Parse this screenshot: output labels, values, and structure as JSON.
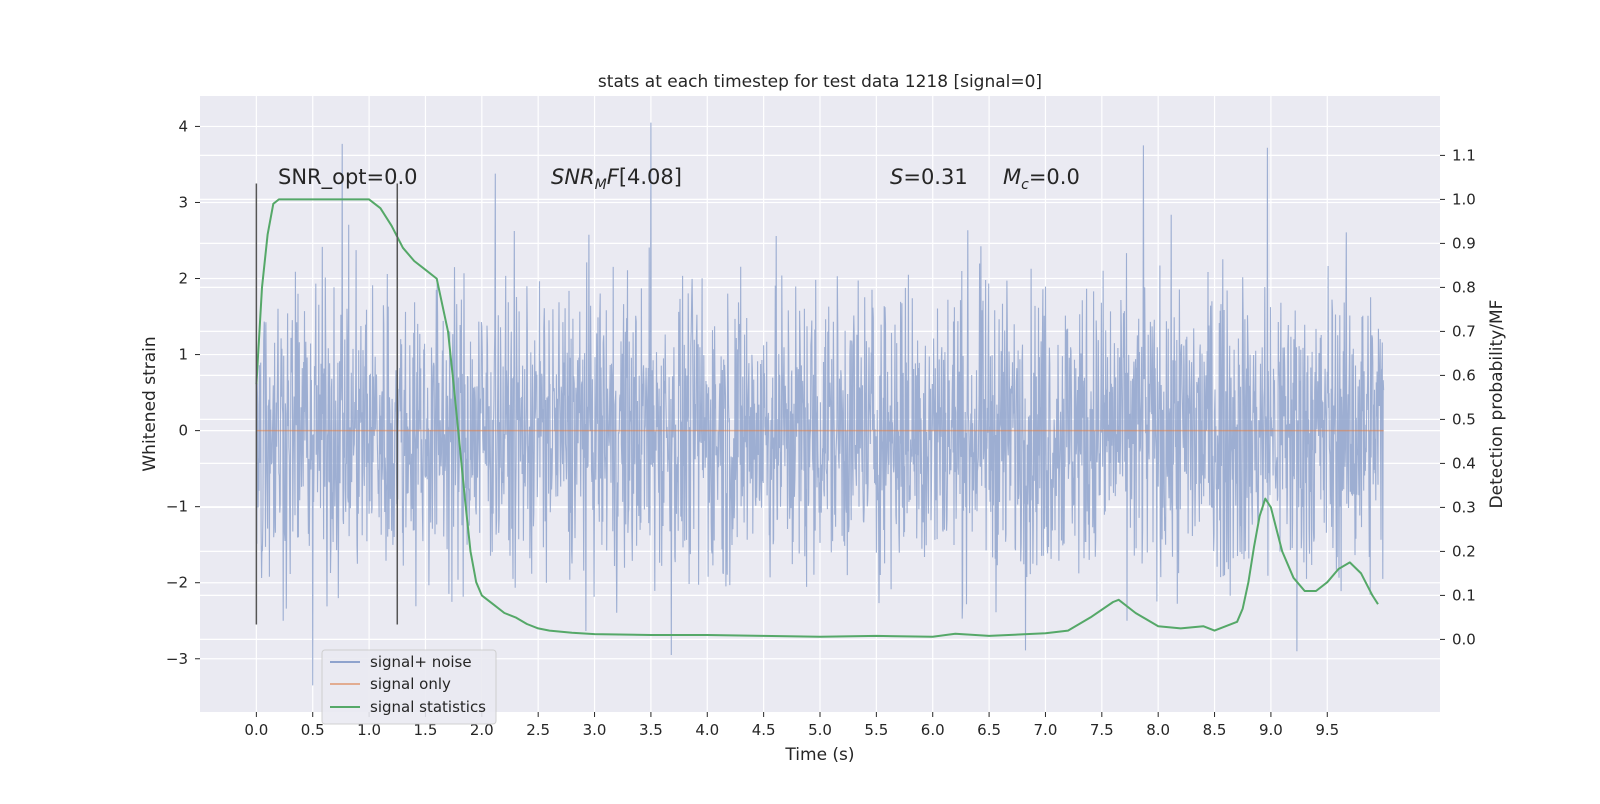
{
  "chart_data": {
    "type": "line",
    "title": "stats at each timestep for test data 1218 [signal=0]",
    "xlabel": "Time (s)",
    "ylabel": "Whitened strain",
    "y2label": "Detection probability/MF",
    "xlim": [
      -0.5,
      10.5
    ],
    "ylim": [
      -3.7,
      4.4
    ],
    "y2lim": [
      -0.165,
      1.235
    ],
    "xticks": [
      0.0,
      0.5,
      1.0,
      1.5,
      2.0,
      2.5,
      3.0,
      3.5,
      4.0,
      4.5,
      5.0,
      5.5,
      6.0,
      6.5,
      7.0,
      7.5,
      8.0,
      8.5,
      9.0,
      9.5
    ],
    "xtick_labels": [
      "0.0",
      "0.5",
      "1.0",
      "1.5",
      "2.0",
      "2.5",
      "3.0",
      "3.5",
      "4.0",
      "4.5",
      "5.0",
      "5.5",
      "6.0",
      "6.5",
      "7.0",
      "7.5",
      "8.0",
      "8.5",
      "9.0",
      "9.5"
    ],
    "yticks": [
      -3,
      -2,
      -1,
      0,
      1,
      2,
      3,
      4
    ],
    "ytick_labels": [
      "−3",
      "−2",
      "−1",
      "0",
      "1",
      "2",
      "3",
      "4"
    ],
    "y2ticks": [
      0.0,
      0.1,
      0.2,
      0.3,
      0.4,
      0.5,
      0.6,
      0.7,
      0.8,
      0.9,
      1.0,
      1.1
    ],
    "y2tick_labels": [
      "0.0",
      "0.1",
      "0.2",
      "0.3",
      "0.4",
      "0.5",
      "0.6",
      "0.7",
      "0.8",
      "0.9",
      "1.0",
      "1.1"
    ],
    "grid": true,
    "legend_position": "bottom-left",
    "annotations": {
      "snr_opt": "SNR_opt=0.0",
      "snr_mf": "[4.08]",
      "s_value": "=0.31",
      "mc_value": "=0.0"
    },
    "vertical_markers": [
      {
        "x": 0.0,
        "y_range": [
          -2.55,
          3.25
        ]
      },
      {
        "x": 1.25,
        "y_range": [
          -2.55,
          3.25
        ]
      }
    ],
    "series": [
      {
        "name": "signal+ noise",
        "color": "#8fa3cd",
        "axis": "left",
        "style": "dense-noise",
        "x_range": [
          0.0,
          10.0
        ],
        "envelope_typical": [
          -1.4,
          1.5
        ],
        "max": 4.05,
        "min": -3.35,
        "notable_peaks": [
          {
            "x": 0.5,
            "y": -3.35
          },
          {
            "x": 0.76,
            "y": 3.77
          },
          {
            "x": 2.12,
            "y": 3.38
          },
          {
            "x": 3.5,
            "y": 4.05
          },
          {
            "x": 3.68,
            "y": -2.95
          },
          {
            "x": 7.87,
            "y": 3.75
          },
          {
            "x": 8.97,
            "y": 3.72
          },
          {
            "x": 9.23,
            "y": -2.9
          }
        ]
      },
      {
        "name": "signal only",
        "color": "#dd8452",
        "axis": "left",
        "x": [
          0.0,
          10.0
        ],
        "y": [
          0.0,
          0.0
        ]
      },
      {
        "name": "signal statistics",
        "color": "#55a868",
        "axis": "right",
        "x": [
          0.0,
          0.05,
          0.1,
          0.15,
          0.2,
          0.3,
          0.5,
          0.7,
          0.9,
          1.0,
          1.1,
          1.2,
          1.3,
          1.4,
          1.5,
          1.6,
          1.7,
          1.75,
          1.8,
          1.85,
          1.9,
          1.95,
          2.0,
          2.1,
          2.2,
          2.3,
          2.4,
          2.5,
          2.6,
          2.8,
          3.0,
          3.5,
          4.0,
          4.5,
          5.0,
          5.5,
          6.0,
          6.2,
          6.5,
          7.0,
          7.2,
          7.4,
          7.6,
          7.65,
          7.8,
          8.0,
          8.2,
          8.4,
          8.5,
          8.7,
          8.75,
          8.8,
          8.85,
          8.9,
          8.95,
          9.0,
          9.05,
          9.1,
          9.2,
          9.3,
          9.4,
          9.5,
          9.6,
          9.7,
          9.8,
          9.9,
          9.95
        ],
        "y": [
          0.58,
          0.8,
          0.92,
          0.99,
          1.0,
          1.0,
          1.0,
          1.0,
          1.0,
          1.0,
          0.98,
          0.94,
          0.89,
          0.86,
          0.84,
          0.82,
          0.7,
          0.58,
          0.45,
          0.32,
          0.2,
          0.13,
          0.1,
          0.08,
          0.06,
          0.05,
          0.035,
          0.025,
          0.02,
          0.015,
          0.012,
          0.01,
          0.01,
          0.008,
          0.006,
          0.008,
          0.006,
          0.013,
          0.008,
          0.014,
          0.02,
          0.05,
          0.085,
          0.09,
          0.06,
          0.03,
          0.025,
          0.03,
          0.02,
          0.04,
          0.07,
          0.13,
          0.21,
          0.28,
          0.32,
          0.3,
          0.25,
          0.2,
          0.14,
          0.11,
          0.11,
          0.13,
          0.16,
          0.175,
          0.15,
          0.1,
          0.08
        ]
      }
    ]
  }
}
